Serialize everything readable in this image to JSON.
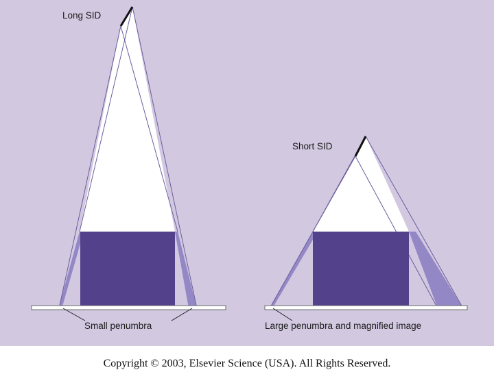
{
  "diagram": {
    "left_panel": {
      "source_label": "Long SID",
      "penumbra_label": "Small penumbra"
    },
    "right_panel": {
      "source_label": "Short SID",
      "penumbra_label": "Large penumbra and magnified image"
    },
    "colors": {
      "background": "#d2c8e0",
      "object": "#54418c",
      "beam": "#ffffff",
      "penumbra": "#8a7bbf",
      "ray_line": "#6a5d9c",
      "film": "#ffffff",
      "source": "#111111"
    }
  },
  "footer": {
    "copyright": "Copyright © 2003, Elsevier Science (USA). All Rights Reserved."
  }
}
